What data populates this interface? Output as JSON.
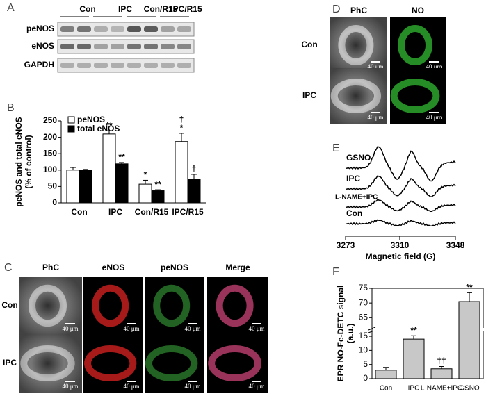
{
  "panel_labels": [
    "A",
    "B",
    "C",
    "D",
    "E",
    "F"
  ],
  "blot": {
    "groups": [
      "Con",
      "IPC",
      "Con/R15",
      "IPC/R15"
    ],
    "rows": [
      "peNOS",
      "eNOS",
      "GAPDH"
    ]
  },
  "micrographs_c": {
    "columns": [
      "PhC",
      "eNOS",
      "peNOS",
      "Merge"
    ],
    "rows": [
      "Con",
      "IPC"
    ],
    "scale_bar": "40 μm"
  },
  "micrographs_d": {
    "columns": [
      "PhC",
      "NO"
    ],
    "rows": [
      "Con",
      "IPC"
    ],
    "scale_bar": "40 μm"
  },
  "epr": {
    "labels": [
      "GSNO",
      "IPC",
      "L-NAME+IPC",
      "Con"
    ],
    "xlim": [
      3273,
      3348
    ],
    "xticks": [
      3273,
      3310,
      3348
    ],
    "x_label": "Magnetic field (G)"
  },
  "chart_data": [
    {
      "type": "bar",
      "y_label": [
        "peNOS and total eNOS",
        "(% of control)"
      ],
      "categories": [
        "Con",
        "IPC",
        "Con/R15",
        "IPC/R15"
      ],
      "series": [
        {
          "name": "peNOS",
          "color": "#ffffff",
          "values": [
            100,
            210,
            57,
            187
          ],
          "errors": [
            8,
            10,
            12,
            25
          ]
        },
        {
          "name": "total eNOS",
          "color": "#000000",
          "values": [
            100,
            119,
            37,
            72
          ],
          "errors": [
            2,
            4,
            3,
            15
          ]
        }
      ],
      "annotations": [
        {
          "series": 0,
          "index": 1,
          "text": "**"
        },
        {
          "series": 1,
          "index": 1,
          "text": "**"
        },
        {
          "series": 0,
          "index": 2,
          "text": "*"
        },
        {
          "series": 1,
          "index": 2,
          "text": "**"
        },
        {
          "series": 0,
          "index": 3,
          "text": "*"
        },
        {
          "series": 0,
          "index": 3,
          "text": "†"
        },
        {
          "series": 1,
          "index": 3,
          "text": "†"
        }
      ],
      "ylim": [
        0,
        250
      ],
      "yticks": [
        0,
        50,
        100,
        150,
        200,
        250
      ],
      "legend": "top-left"
    },
    {
      "type": "broken-bar",
      "y_label": [
        "EPR NO-Fe-DETC signal",
        "(a.u.)"
      ],
      "categories": [
        "Con",
        "IPC",
        "L-NAME+IPC",
        "GSNO"
      ],
      "series": [
        {
          "color": "#c8c8c8",
          "values": [
            3,
            14,
            3.5,
            70.5
          ],
          "errors": [
            1,
            1.2,
            0.8,
            3
          ]
        }
      ],
      "annotations": [
        {
          "series": 0,
          "index": 1,
          "text": "**"
        },
        {
          "series": 0,
          "index": 2,
          "text": "††"
        },
        {
          "series": 0,
          "index": 3,
          "text": "**"
        }
      ],
      "ylim": [
        0,
        75
      ],
      "ybreak": [
        16,
        62
      ],
      "yticks": [
        0,
        5,
        10,
        15,
        65,
        70,
        75
      ]
    }
  ]
}
